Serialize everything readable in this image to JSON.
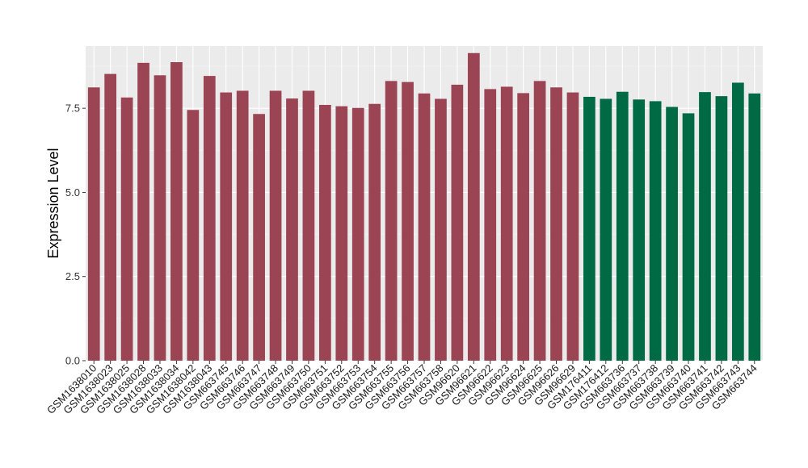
{
  "chart_data": {
    "type": "bar",
    "title": "",
    "xlabel": "",
    "ylabel": "Expression Level",
    "ylim": [
      0,
      9.35
    ],
    "yticks": [
      "0.0",
      "2.5",
      "5.0",
      "7.5"
    ],
    "ytick_values": [
      0,
      2.5,
      5.0,
      7.5
    ],
    "grid": true,
    "legend": "none",
    "background": "#ebebeb",
    "categories": [
      "GSM1638010",
      "GSM1638023",
      "GSM1638025",
      "GSM1638028",
      "GSM1638033",
      "GSM1638034",
      "GSM1638042",
      "GSM1638043",
      "GSM663745",
      "GSM663746",
      "GSM663747",
      "GSM663748",
      "GSM663749",
      "GSM663750",
      "GSM663751",
      "GSM663752",
      "GSM663753",
      "GSM663754",
      "GSM663755",
      "GSM663756",
      "GSM663757",
      "GSM663758",
      "GSM96620",
      "GSM96621",
      "GSM96622",
      "GSM96623",
      "GSM96624",
      "GSM96625",
      "GSM96626",
      "GSM96629",
      "GSM176411",
      "GSM176412",
      "GSM663736",
      "GSM663737",
      "GSM663738",
      "GSM663739",
      "GSM663740",
      "GSM663741",
      "GSM663742",
      "GSM663743",
      "GSM663744"
    ],
    "values": [
      8.12,
      8.52,
      7.82,
      8.85,
      8.48,
      8.87,
      7.45,
      8.46,
      7.97,
      8.02,
      7.33,
      8.02,
      7.79,
      8.02,
      7.6,
      7.56,
      7.51,
      7.63,
      8.31,
      8.28,
      7.94,
      7.78,
      8.2,
      9.14,
      8.07,
      8.14,
      7.95,
      8.31,
      8.12,
      7.97,
      7.84,
      7.78,
      7.99,
      7.76,
      7.71,
      7.54,
      7.35,
      7.98,
      7.86,
      8.26,
      7.94
    ],
    "bar_colors": [
      "#9b4453",
      "#9b4453",
      "#9b4453",
      "#9b4453",
      "#9b4453",
      "#9b4453",
      "#9b4453",
      "#9b4453",
      "#9b4453",
      "#9b4453",
      "#9b4453",
      "#9b4453",
      "#9b4453",
      "#9b4453",
      "#9b4453",
      "#9b4453",
      "#9b4453",
      "#9b4453",
      "#9b4453",
      "#9b4453",
      "#9b4453",
      "#9b4453",
      "#9b4453",
      "#9b4453",
      "#9b4453",
      "#9b4453",
      "#9b4453",
      "#9b4453",
      "#9b4453",
      "#9b4453",
      "#006a45",
      "#006a45",
      "#006a45",
      "#006a45",
      "#006a45",
      "#006a45",
      "#006a45",
      "#006a45",
      "#006a45",
      "#006a45",
      "#006a45"
    ]
  }
}
